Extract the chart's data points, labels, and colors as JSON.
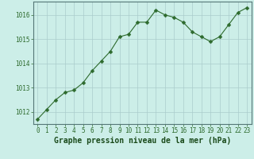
{
  "x": [
    0,
    1,
    2,
    3,
    4,
    5,
    6,
    7,
    8,
    9,
    10,
    11,
    12,
    13,
    14,
    15,
    16,
    17,
    18,
    19,
    20,
    21,
    22,
    23
  ],
  "y": [
    1011.7,
    1012.1,
    1012.5,
    1012.8,
    1012.9,
    1013.2,
    1013.7,
    1014.1,
    1014.5,
    1015.1,
    1015.2,
    1015.7,
    1015.7,
    1016.2,
    1016.0,
    1015.9,
    1015.7,
    1015.3,
    1015.1,
    1014.9,
    1015.1,
    1015.6,
    1016.1,
    1016.3
  ],
  "line_color": "#2d6a2d",
  "marker": "D",
  "marker_size": 2.5,
  "bg_color": "#cceee8",
  "grid_color": "#aacccc",
  "xlabel": "Graphe pression niveau de la mer (hPa)",
  "xlabel_color": "#1a4a1a",
  "xlabel_fontsize": 7,
  "tick_color": "#2d6a2d",
  "tick_fontsize": 5.5,
  "ylim": [
    1011.5,
    1016.55
  ],
  "yticks": [
    1012,
    1013,
    1014,
    1015,
    1016
  ],
  "xlim": [
    -0.5,
    23.5
  ],
  "xticks": [
    0,
    1,
    2,
    3,
    4,
    5,
    6,
    7,
    8,
    9,
    10,
    11,
    12,
    13,
    14,
    15,
    16,
    17,
    18,
    19,
    20,
    21,
    22,
    23
  ]
}
